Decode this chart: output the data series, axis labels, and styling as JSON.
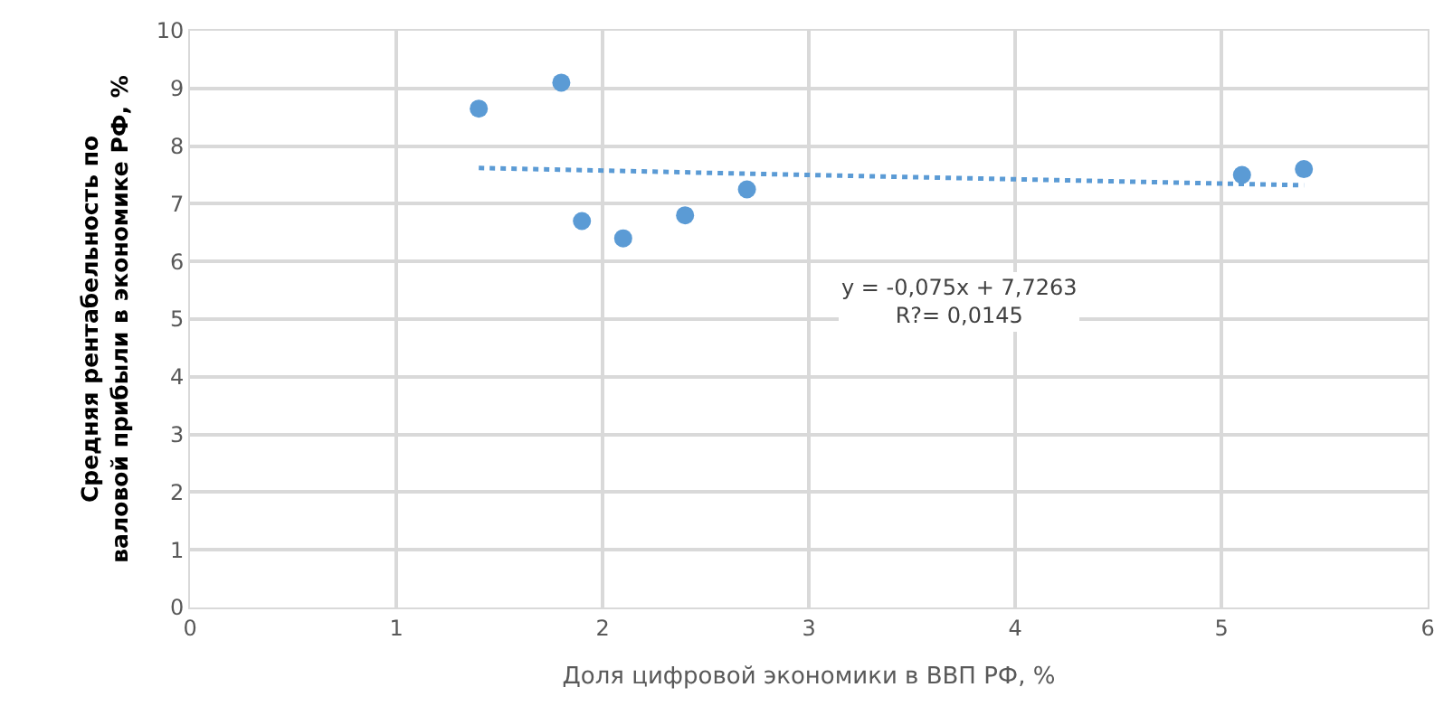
{
  "chart_data": {
    "type": "scatter",
    "xlabel": "Доля цифровой экономики в ВВП РФ, %",
    "ylabel": "Средняя рентабельность по валовой прибыли в экономике РФ, %",
    "xlim": [
      0,
      6
    ],
    "xticks": [
      0,
      1,
      2,
      3,
      4,
      5,
      6
    ],
    "ylim": [
      0,
      10
    ],
    "yticks": [
      0,
      1,
      2,
      3,
      4,
      5,
      6,
      7,
      8,
      9,
      10
    ],
    "grid": true,
    "series": [
      {
        "color": "#5b9bd5",
        "marker": "circle",
        "x": [
          1.4,
          1.8,
          1.9,
          2.1,
          2.4,
          2.7,
          5.1,
          5.4
        ],
        "values": [
          8.65,
          9.1,
          6.7,
          6.4,
          6.8,
          7.25,
          7.5,
          7.6
        ]
      },
      {
        "type": "line",
        "color": "#5b9bd5",
        "marker": "none",
        "line_style": "dotted",
        "x": [
          1.4,
          5.4
        ],
        "values": [
          7.62,
          7.32
        ]
      }
    ],
    "annotations": [
      "y = -0,075x + 7,7263\nR?= 0,0145"
    ]
  }
}
